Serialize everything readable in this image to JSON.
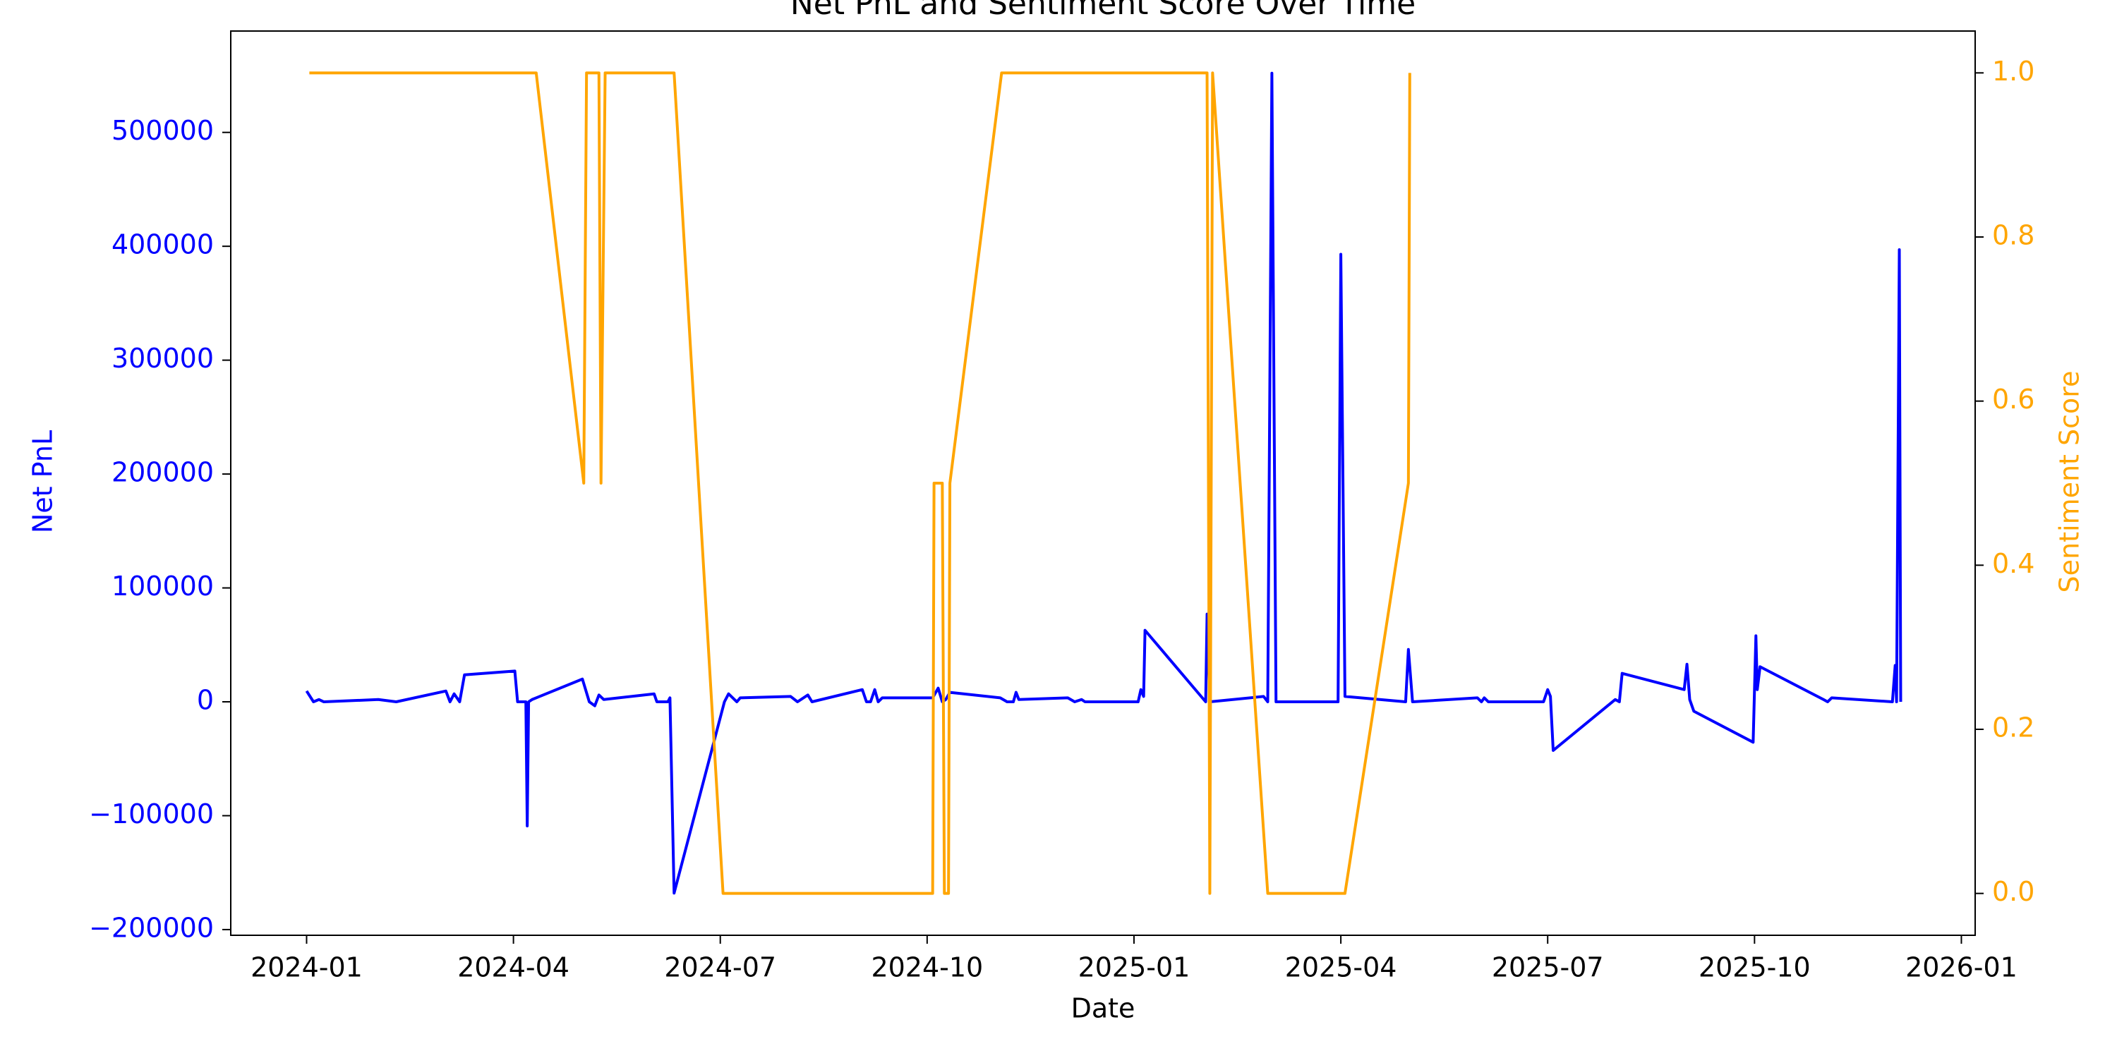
{
  "chart_data": {
    "type": "line",
    "title": "Net PnL and Sentiment Score Over Time",
    "x_label": "Date",
    "y_label": "Net PnL",
    "y2_label": "Sentiment Score",
    "xlim": [
      -1.1,
      24.2
    ],
    "xticks": [
      {
        "value": 0,
        "label": "2024-01"
      },
      {
        "value": 3,
        "label": "2024-04"
      },
      {
        "value": 6,
        "label": "2024-07"
      },
      {
        "value": 9,
        "label": "2024-10"
      },
      {
        "value": 12,
        "label": "2025-01"
      },
      {
        "value": 15,
        "label": "2025-04"
      },
      {
        "value": 18,
        "label": "2025-07"
      },
      {
        "value": 21,
        "label": "2025-10"
      },
      {
        "value": 24,
        "label": "2026-01"
      }
    ],
    "ylim": [
      -205000,
      589000
    ],
    "yticks": [
      {
        "value": -200000,
        "label": "−200000"
      },
      {
        "value": -100000,
        "label": "−100000"
      },
      0,
      100000,
      200000,
      300000,
      400000,
      500000
    ],
    "y2lim": [
      -0.051,
      1.051
    ],
    "y2ticks": [
      {
        "value": 0,
        "label": "0.0"
      },
      0.2,
      0.4,
      0.6,
      0.8,
      {
        "value": 1,
        "label": "1.0"
      }
    ],
    "grid": false,
    "series": [
      {
        "name": "Net PnL",
        "color": "blue",
        "axis": "y",
        "x": [
          0,
          0.1,
          0.18,
          0.25,
          1.04,
          1.3,
          2.02,
          2.08,
          2.14,
          2.22,
          2.29,
          3.02,
          3.06,
          3.18,
          3.2,
          3.22,
          3.27,
          4.0,
          4.1,
          4.18,
          4.24,
          4.31,
          5.04,
          5.08,
          5.24,
          5.27,
          5.33,
          6.06,
          6.12,
          6.24,
          6.29,
          7.02,
          7.12,
          7.27,
          7.33,
          8.06,
          8.12,
          8.18,
          8.24,
          8.29,
          8.35,
          9.08,
          9.16,
          9.22,
          9.27,
          9.33,
          10.06,
          10.16,
          10.25,
          10.29,
          10.33,
          11.04,
          11.14,
          11.24,
          11.29,
          12.06,
          12.1,
          12.14,
          12.16,
          13.04,
          13.06,
          13.1,
          13.88,
          13.94,
          14.0,
          14.06,
          14.96,
          15.0,
          15.06,
          15.94,
          15.98,
          16.04,
          16.98,
          17.04,
          17.08,
          17.14,
          17.94,
          18.0,
          18.04,
          18.08,
          18.98,
          19.04,
          19.08,
          19.98,
          20.02,
          20.06,
          20.12,
          20.98,
          21.02,
          21.04,
          21.08,
          22.0,
          22.06,
          22.12,
          23.0,
          23.04,
          23.06,
          23.1,
          23.12
        ],
        "values": [
          9500,
          0,
          2000,
          0,
          2000,
          0,
          9500,
          0,
          7000,
          0,
          23700,
          27000,
          0,
          0,
          -109000,
          0,
          2000,
          20000,
          0,
          -3500,
          6000,
          2000,
          7000,
          0,
          0,
          3500,
          -168000,
          0,
          7000,
          0,
          3500,
          4700,
          0,
          6000,
          0,
          10700,
          0,
          0,
          10700,
          0,
          3500,
          3500,
          12000,
          0,
          2000,
          8300,
          3500,
          0,
          0,
          8300,
          2000,
          3500,
          0,
          2000,
          0,
          0,
          10700,
          4700,
          62800,
          0,
          77000,
          0,
          4700,
          0,
          552000,
          0,
          0,
          393000,
          4700,
          0,
          46000,
          0,
          3500,
          0,
          3500,
          0,
          0,
          10700,
          4700,
          -42700,
          2000,
          0,
          25000,
          10700,
          33000,
          2000,
          -8300,
          -35500,
          58000,
          10700,
          30800,
          2000,
          0,
          3500,
          0,
          32000,
          0,
          397000,
          0
        ]
      },
      {
        "name": "Sentiment Score",
        "color": "orange",
        "axis": "y2",
        "x": [
          0.04,
          3.33,
          4.02,
          4.06,
          4.24,
          4.27,
          4.33,
          5.33,
          6.04,
          9.08,
          9.1,
          9.22,
          9.25,
          9.31,
          9.33,
          10.08,
          13.06,
          13.1,
          13.14,
          13.94,
          15.06,
          15.98,
          16.0
        ],
        "values": [
          1,
          1,
          0.5,
          1,
          1,
          0.5,
          1,
          1,
          0,
          0,
          0.5,
          0.5,
          0,
          0,
          0.5,
          1,
          1,
          0,
          1,
          0,
          0,
          0.5,
          1
        ]
      }
    ]
  }
}
